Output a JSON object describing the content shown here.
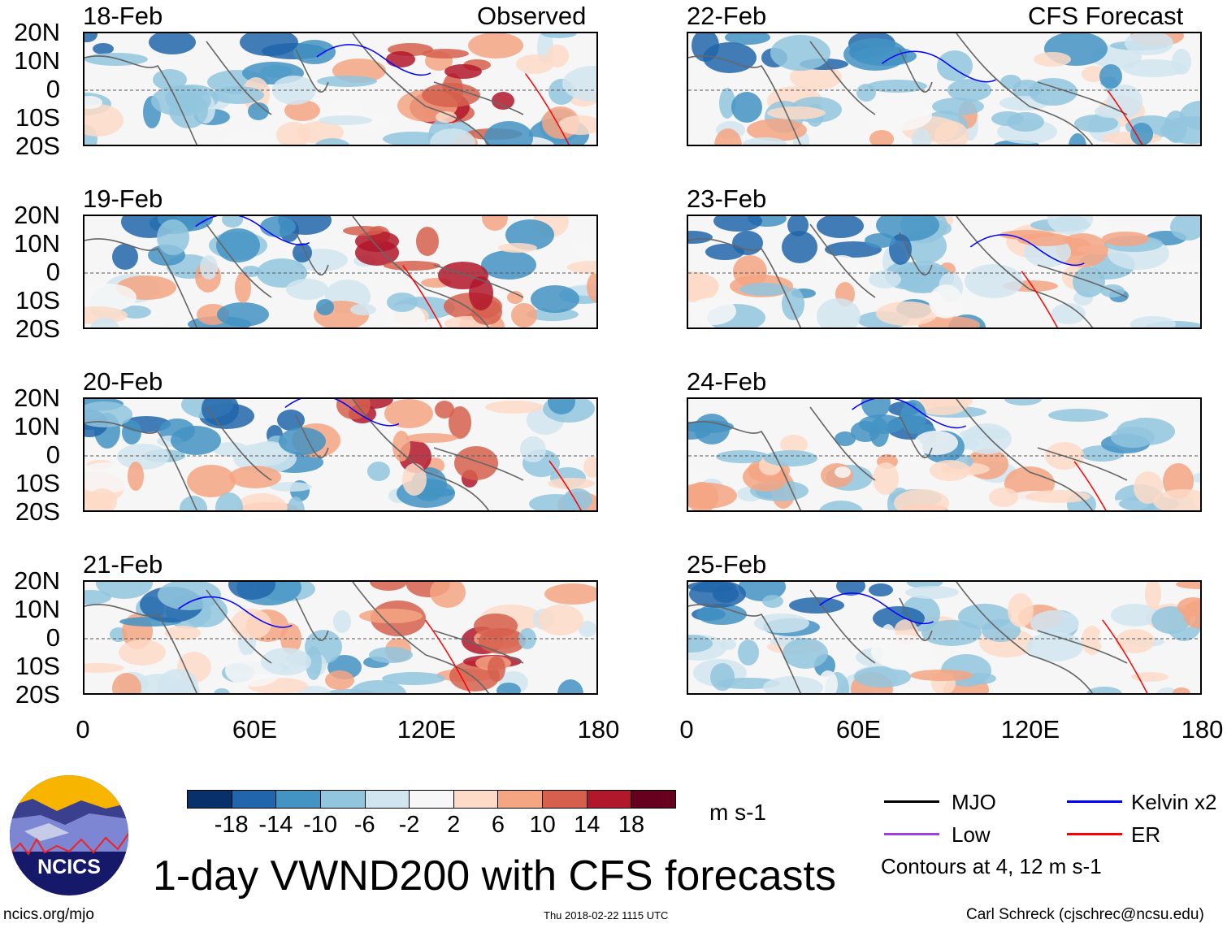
{
  "headers": {
    "observed": "Observed",
    "forecast": "CFS Forecast"
  },
  "panels_left": [
    "18-Feb",
    "19-Feb",
    "20-Feb",
    "21-Feb"
  ],
  "panels_right": [
    "22-Feb",
    "23-Feb",
    "24-Feb",
    "25-Feb"
  ],
  "lat_labels": [
    "20N",
    "10N",
    "0",
    "10S",
    "20S"
  ],
  "lon_labels": [
    "0",
    "60E",
    "120E",
    "180"
  ],
  "colorbar": {
    "colors": [
      "#08306b",
      "#2166ac",
      "#4393c3",
      "#92c5de",
      "#d1e5f0",
      "#f7f7f7",
      "#fddbc7",
      "#f4a582",
      "#d6604d",
      "#b2182b",
      "#67001f"
    ],
    "labels": [
      "-18",
      "-14",
      "-10",
      "-6",
      "-2",
      "2",
      "6",
      "10",
      "14",
      "18"
    ],
    "units": "m s-1"
  },
  "title": "1-day VWND200 with CFS forecasts",
  "legend": {
    "items": [
      {
        "label": "MJO",
        "color": "#000000"
      },
      {
        "label": "Kelvin x2",
        "color": "#0000ff"
      },
      {
        "label": "Low",
        "color": "#a040e0"
      },
      {
        "label": "ER",
        "color": "#ff0000"
      }
    ],
    "contours_note": "Contours at 4, 12 m s-1"
  },
  "logo_text": "NCICS",
  "footer": {
    "url": "ncics.org/mjo",
    "timestamp": "Thu 2018-02-22 1115 UTC",
    "credit": "Carl Schreck (cjschrec@ncsu.edu)"
  }
}
